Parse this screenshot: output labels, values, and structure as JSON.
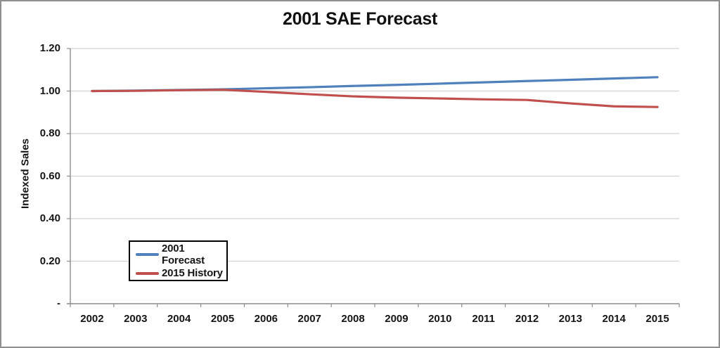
{
  "title": "2001 SAE Forecast",
  "y_axis_title": "Indexed Sales",
  "legend": {
    "items": [
      {
        "label": "2001 Forecast",
        "color": "#4F81BD"
      },
      {
        "label": "2015 History",
        "color": "#C0504D"
      }
    ]
  },
  "chart_data": {
    "type": "line",
    "title": "2001 SAE Forecast",
    "xlabel": "",
    "ylabel": "Indexed Sales",
    "categories": [
      2002,
      2003,
      2004,
      2005,
      2006,
      2007,
      2008,
      2009,
      2010,
      2011,
      2012,
      2013,
      2014,
      2015
    ],
    "series": [
      {
        "name": "2001 Forecast",
        "color": "#4F81BD",
        "values": [
          1.0,
          1.002,
          1.005,
          1.008,
          1.013,
          1.018,
          1.024,
          1.029,
          1.035,
          1.041,
          1.047,
          1.053,
          1.059,
          1.065
        ]
      },
      {
        "name": "2015 History",
        "color": "#C0504D",
        "values": [
          1.0,
          1.001,
          1.004,
          1.006,
          0.996,
          0.985,
          0.975,
          0.969,
          0.965,
          0.961,
          0.958,
          0.942,
          0.928,
          0.925
        ]
      }
    ],
    "ylim": [
      0,
      1.2
    ],
    "y_ticks": [
      0,
      0.2,
      0.4,
      0.6,
      0.8,
      1.0,
      1.2
    ],
    "y_tick_labels": [
      "-",
      "0.20",
      "0.40",
      "0.60",
      "0.80",
      "1.00",
      "1.20"
    ],
    "grid": "horizontal",
    "legend_position": "inside-bottom-left"
  },
  "colors": {
    "background": "#ffffff",
    "outer_border": "#8f8f8f",
    "gridline": "#d2d2d2",
    "axis": "#8c8c8c",
    "text": "#151515",
    "legend_border": "#000000"
  }
}
